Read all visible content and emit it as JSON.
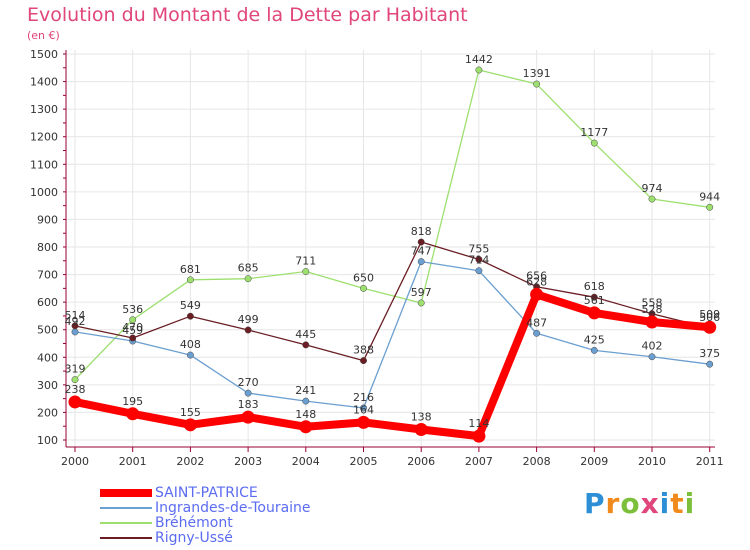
{
  "title": "Evolution du Montant de la Dette par Habitant",
  "subtitle": "(en €)",
  "logo": [
    "P",
    "r",
    "o",
    "x",
    "i",
    "t",
    "i"
  ],
  "colors": {
    "title": "#e0457b",
    "axis": "#9a0030",
    "grid": "#e6e6e6",
    "label": "#333333",
    "legend_text": "#5b6cf0",
    "logo": [
      "#2d8fd5",
      "#f08a1c",
      "#7cbf3a",
      "#e0457b",
      "#2d8fd5",
      "#f08a1c",
      "#7cbf3a"
    ]
  },
  "chart_data": {
    "type": "line",
    "x": [
      "2000",
      "2001",
      "2002",
      "2003",
      "2004",
      "2005",
      "2006",
      "2007",
      "2008",
      "2009",
      "2010",
      "2011"
    ],
    "yticks": [
      "100",
      "200",
      "300",
      "400",
      "500",
      "600",
      "700",
      "800",
      "900",
      "1000",
      "1100",
      "1200",
      "1300",
      "1400",
      "1500"
    ],
    "ylim": [
      100,
      1500
    ],
    "grid": true,
    "legend_position": "bottom-left",
    "series": [
      {
        "name": "Bréhémont",
        "color": "#9de06f",
        "values": [
          319,
          536,
          681,
          685,
          711,
          650,
          597,
          1442,
          1391,
          1177,
          974,
          944
        ]
      },
      {
        "name": "Ingrandes-de-Touraine",
        "color": "#6a9fd0",
        "values": [
          492,
          459,
          408,
          270,
          241,
          216,
          747,
          714,
          487,
          425,
          402,
          375
        ]
      },
      {
        "name": "Rigny-Ussé",
        "color": "#6a1e24",
        "values": [
          514,
          470,
          549,
          499,
          445,
          388,
          818,
          755,
          656,
          618,
          558,
          506
        ]
      },
      {
        "name": "SAINT-PATRICE",
        "color": "#ff0000",
        "values": [
          238,
          195,
          155,
          183,
          148,
          164,
          138,
          114,
          628,
          561,
          528,
          509
        ]
      }
    ],
    "legend": [
      "SAINT-PATRICE",
      "Ingrandes-de-Touraine",
      "Bréhémont",
      "Rigny-Ussé"
    ]
  }
}
